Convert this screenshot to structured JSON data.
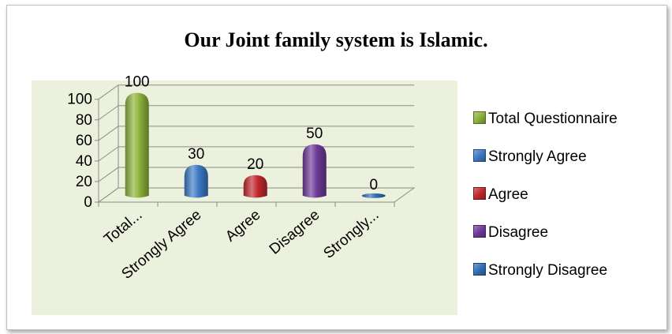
{
  "chart_data": {
    "type": "bar",
    "title": "Our Joint family system is Islamic.",
    "categories": [
      "Total...",
      "Strongly Agree",
      "Agree",
      "Disagree",
      "Strongly..."
    ],
    "values": [
      100,
      30,
      20,
      50,
      0
    ],
    "data_labels": [
      "100",
      "30",
      "20",
      "50",
      "0"
    ],
    "ylim": [
      0,
      100
    ],
    "yticks": [
      0,
      20,
      40,
      60,
      80,
      100
    ],
    "ytick_labels": [
      "0",
      "20",
      "40",
      "60",
      "80",
      "100"
    ],
    "grid": true,
    "legend_position": "right",
    "legend": [
      "Total Questionnaire",
      "Strongly Agree",
      "Agree",
      "Disagree",
      "Strongly Disagree"
    ],
    "colors": [
      "#8cb23a",
      "#3c78c4",
      "#c0282c",
      "#6e3a9a",
      "#2f6fb5"
    ],
    "xlabel": "",
    "ylabel": ""
  }
}
